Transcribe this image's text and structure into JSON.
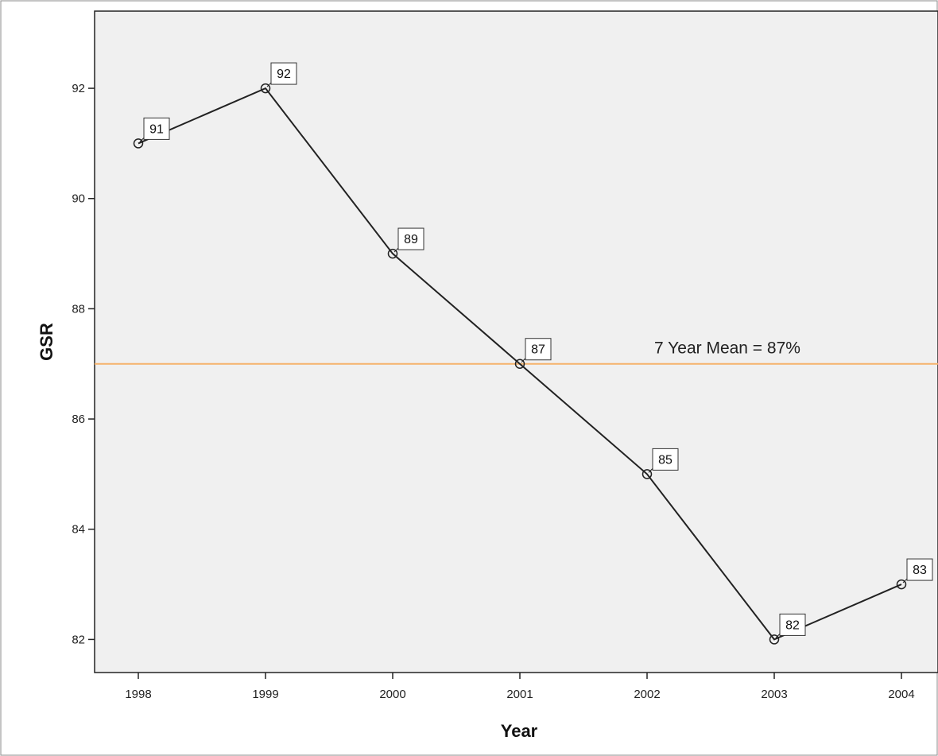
{
  "chart_data": {
    "type": "line",
    "title": "",
    "xlabel": "Year",
    "ylabel": "GSR",
    "categories": [
      "1998",
      "1999",
      "2000",
      "2001",
      "2002",
      "2003",
      "2004"
    ],
    "series": [
      {
        "values": [
          91,
          92,
          89,
          87,
          85,
          82,
          83
        ]
      }
    ],
    "data_labels": [
      "91",
      "92",
      "89",
      "87",
      "85",
      "82",
      "83"
    ],
    "yticks": [
      82,
      84,
      86,
      88,
      90,
      92
    ],
    "ylim": [
      81.4,
      93.4
    ],
    "grid": false,
    "legend": "none",
    "reference_line": {
      "value": 87,
      "label": "7 Year Mean = 87%"
    },
    "colors": {
      "plot_background": "#f0f0f0",
      "line": "#222222",
      "reference_line": "#f5b26b",
      "label_box": "#ffffff"
    }
  }
}
